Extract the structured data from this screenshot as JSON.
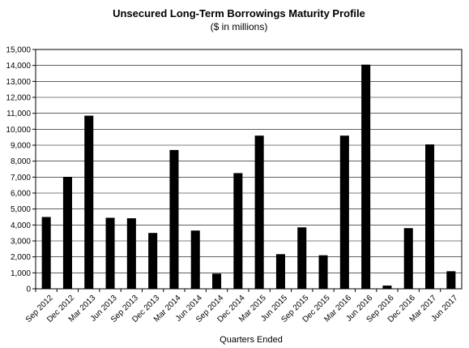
{
  "chart_data": {
    "type": "bar",
    "title": "Unsecured Long-Term Borrowings Maturity Profile",
    "subtitle": "($ in millions)",
    "xlabel": "Quarters Ended",
    "ylabel": "",
    "ylim": [
      0,
      15000
    ],
    "yticks": [
      0,
      1000,
      2000,
      3000,
      4000,
      5000,
      6000,
      7000,
      8000,
      9000,
      10000,
      11000,
      12000,
      13000,
      14000,
      15000
    ],
    "ytick_labels": [
      "0",
      "1,000",
      "2,000",
      "3,000",
      "4,000",
      "5,000",
      "6,000",
      "7,000",
      "8,000",
      "9,000",
      "10,000",
      "11,000",
      "12,000",
      "13,000",
      "14,000",
      "15,000"
    ],
    "grid": true,
    "legend": "none",
    "bar_color": "#000000",
    "categories": [
      "Sep 2012",
      "Dec 2012",
      "Mar 2013",
      "Jun 2013",
      "Sep 2013",
      "Dec 2013",
      "Mar 2014",
      "Jun 2014",
      "Sep 2014",
      "Dec 2014",
      "Mar 2015",
      "Jun 2015",
      "Sep 2015",
      "Dec 2015",
      "Mar 2016",
      "Jun 2016",
      "Sep 2016",
      "Dec 2016",
      "Mar 2017",
      "Jun 2017"
    ],
    "values": [
      4500,
      7000,
      10850,
      4450,
      4420,
      3500,
      8700,
      3650,
      950,
      7250,
      9600,
      2170,
      3850,
      2100,
      9600,
      14050,
      200,
      3800,
      9050,
      1100
    ]
  }
}
